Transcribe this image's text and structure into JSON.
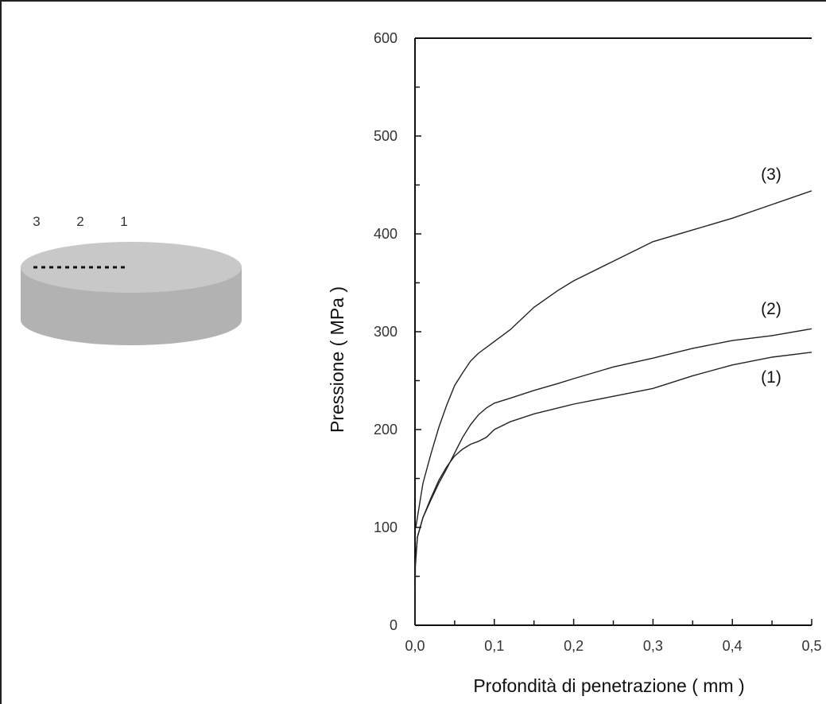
{
  "sample": {
    "point_labels": [
      "3",
      "2",
      "1"
    ],
    "colors": {
      "top": "#c8c8c8",
      "side": "#b2b2b2",
      "dots": "#111111"
    }
  },
  "chart_data": {
    "type": "line",
    "xlabel": "Profondità di penetrazione ( mm )",
    "ylabel": "Pressione ( MPa )",
    "xlim": [
      0,
      0.5
    ],
    "ylim": [
      0,
      600
    ],
    "x_ticks": [
      0,
      0.1,
      0.2,
      0.3,
      0.4,
      0.5
    ],
    "x_tick_labels": [
      "0,0",
      "0,1",
      "0,2",
      "0,3",
      "0,4",
      "0,5"
    ],
    "y_ticks": [
      0,
      100,
      200,
      300,
      400,
      500,
      600
    ],
    "y_tick_labels": [
      "0",
      "100",
      "200",
      "300",
      "400",
      "500",
      "600"
    ],
    "grid": false,
    "series": [
      {
        "name": "(1)",
        "points": [
          [
            0,
            0
          ],
          [
            0.0005,
            60
          ],
          [
            0.003,
            90
          ],
          [
            0.01,
            110
          ],
          [
            0.02,
            130
          ],
          [
            0.03,
            148
          ],
          [
            0.04,
            162
          ],
          [
            0.05,
            173
          ],
          [
            0.06,
            180
          ],
          [
            0.07,
            185
          ],
          [
            0.08,
            188
          ],
          [
            0.09,
            192
          ],
          [
            0.1,
            200
          ],
          [
            0.12,
            208
          ],
          [
            0.15,
            216
          ],
          [
            0.18,
            222
          ],
          [
            0.2,
            226
          ],
          [
            0.25,
            234
          ],
          [
            0.3,
            242
          ],
          [
            0.35,
            255
          ],
          [
            0.4,
            266
          ],
          [
            0.45,
            274
          ],
          [
            0.5,
            279
          ]
        ]
      },
      {
        "name": "(2)",
        "points": [
          [
            0,
            60
          ],
          [
            0.003,
            90
          ],
          [
            0.01,
            110
          ],
          [
            0.02,
            128
          ],
          [
            0.03,
            145
          ],
          [
            0.04,
            160
          ],
          [
            0.05,
            176
          ],
          [
            0.06,
            192
          ],
          [
            0.07,
            205
          ],
          [
            0.08,
            215
          ],
          [
            0.09,
            222
          ],
          [
            0.1,
            227
          ],
          [
            0.12,
            232
          ],
          [
            0.15,
            240
          ],
          [
            0.18,
            247
          ],
          [
            0.2,
            252
          ],
          [
            0.25,
            264
          ],
          [
            0.3,
            273
          ],
          [
            0.35,
            283
          ],
          [
            0.4,
            291
          ],
          [
            0.45,
            296
          ],
          [
            0.5,
            303
          ]
        ]
      },
      {
        "name": "(3)",
        "points": [
          [
            0.001,
            100
          ],
          [
            0.005,
            120
          ],
          [
            0.01,
            145
          ],
          [
            0.02,
            175
          ],
          [
            0.03,
            202
          ],
          [
            0.04,
            225
          ],
          [
            0.05,
            245
          ],
          [
            0.06,
            258
          ],
          [
            0.07,
            270
          ],
          [
            0.08,
            278
          ],
          [
            0.1,
            290
          ],
          [
            0.12,
            302
          ],
          [
            0.15,
            325
          ],
          [
            0.18,
            342
          ],
          [
            0.2,
            352
          ],
          [
            0.25,
            372
          ],
          [
            0.3,
            392
          ],
          [
            0.35,
            404
          ],
          [
            0.4,
            416
          ],
          [
            0.45,
            430
          ],
          [
            0.5,
            444
          ]
        ]
      }
    ]
  }
}
